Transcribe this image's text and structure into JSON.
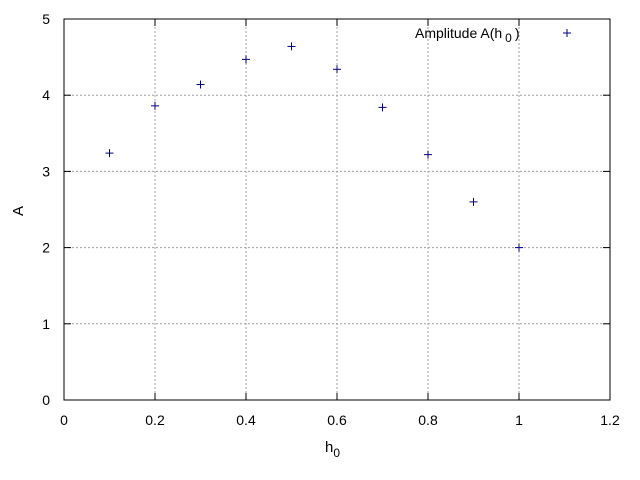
{
  "chart_data": {
    "type": "scatter",
    "xlabel": {
      "main": "h",
      "sub": "0"
    },
    "ylabel": "A",
    "xlim": [
      0,
      1.2
    ],
    "ylim": [
      0,
      5
    ],
    "xticks": [
      0,
      0.2,
      0.4,
      0.6,
      0.8,
      1,
      1.2
    ],
    "xtick_labels": [
      "0",
      "0.2",
      "0.4",
      "0.6",
      "0.8",
      "1",
      "1.2"
    ],
    "yticks": [
      0,
      1,
      2,
      3,
      4,
      5
    ],
    "ytick_labels": [
      "0",
      "1",
      "2",
      "3",
      "4",
      "5"
    ],
    "grid": true,
    "legend_position": "top-right",
    "series": [
      {
        "name": "Amplitude A(h 0 )",
        "name_parts": {
          "prefix": "Amplitude A(h",
          "sub": "0",
          "suffix": ")"
        },
        "color": "#00008b",
        "marker": "plus",
        "x": [
          0.1,
          0.2,
          0.3,
          0.4,
          0.5,
          0.6,
          0.7,
          0.8,
          0.9,
          1.0
        ],
        "y": [
          3.24,
          3.86,
          4.14,
          4.47,
          4.64,
          4.34,
          3.84,
          3.22,
          2.6,
          2.0
        ]
      }
    ]
  }
}
